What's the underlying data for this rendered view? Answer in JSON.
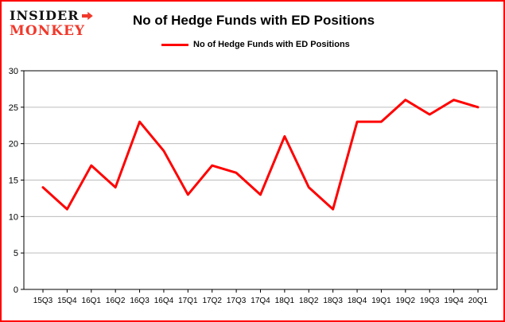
{
  "brand": {
    "line1": "INSIDER",
    "line2": "MONKEY",
    "accent": "#f0392b"
  },
  "header": {
    "title": "No of Hedge Funds with ED Positions"
  },
  "legend": {
    "label": "No of Hedge Funds with ED Positions",
    "color": "#ff0000"
  },
  "chart_data": {
    "type": "line",
    "title": "No of Hedge Funds with ED Positions",
    "categories": [
      "15Q3",
      "15Q4",
      "16Q1",
      "16Q2",
      "16Q3",
      "16Q4",
      "17Q1",
      "17Q2",
      "17Q3",
      "17Q4",
      "18Q1",
      "18Q2",
      "18Q3",
      "18Q4",
      "19Q1",
      "19Q2",
      "19Q3",
      "19Q4",
      "20Q1"
    ],
    "values": [
      14,
      11,
      17,
      14,
      23,
      19,
      13,
      17,
      16,
      13,
      21,
      14,
      11,
      23,
      23,
      26,
      24,
      26,
      25
    ],
    "xlabel": "",
    "ylabel": "",
    "ylim": [
      0,
      30
    ],
    "yticks": [
      0,
      5,
      10,
      15,
      20,
      25,
      30
    ],
    "grid": true,
    "legend_position": "top-left",
    "line_color": "#ff0000",
    "grid_color": "#bcbcbc",
    "axis_color": "#000000"
  }
}
